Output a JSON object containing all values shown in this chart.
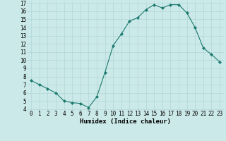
{
  "x": [
    0,
    1,
    2,
    3,
    4,
    5,
    6,
    7,
    8,
    9,
    10,
    11,
    12,
    13,
    14,
    15,
    16,
    17,
    18,
    19,
    20,
    21,
    22,
    23
  ],
  "y": [
    7.5,
    7.0,
    6.5,
    6.0,
    5.0,
    4.8,
    4.7,
    4.2,
    5.5,
    8.5,
    11.8,
    13.2,
    14.8,
    15.2,
    16.2,
    16.8,
    16.4,
    16.8,
    16.8,
    15.8,
    14.0,
    11.5,
    10.7,
    9.8
  ],
  "line_color": "#1a7a6e",
  "marker": "D",
  "marker_size": 2.0,
  "bg_color": "#cce9e9",
  "grid_color": "#b0d5d5",
  "xlabel": "Humidex (Indice chaleur)",
  "ylim": [
    4,
    17
  ],
  "xlim": [
    -0.5,
    23.5
  ],
  "yticks": [
    4,
    5,
    6,
    7,
    8,
    9,
    10,
    11,
    12,
    13,
    14,
    15,
    16,
    17
  ],
  "xticks": [
    0,
    1,
    2,
    3,
    4,
    5,
    6,
    7,
    8,
    9,
    10,
    11,
    12,
    13,
    14,
    15,
    16,
    17,
    18,
    19,
    20,
    21,
    22,
    23
  ],
  "xtick_labels": [
    "0",
    "1",
    "2",
    "3",
    "4",
    "5",
    "6",
    "7",
    "8",
    "9",
    "10",
    "11",
    "12",
    "13",
    "14",
    "15",
    "16",
    "17",
    "18",
    "19",
    "20",
    "21",
    "22",
    "23"
  ],
  "label_fontsize": 6.5,
  "tick_fontsize": 5.5,
  "linewidth": 0.8
}
